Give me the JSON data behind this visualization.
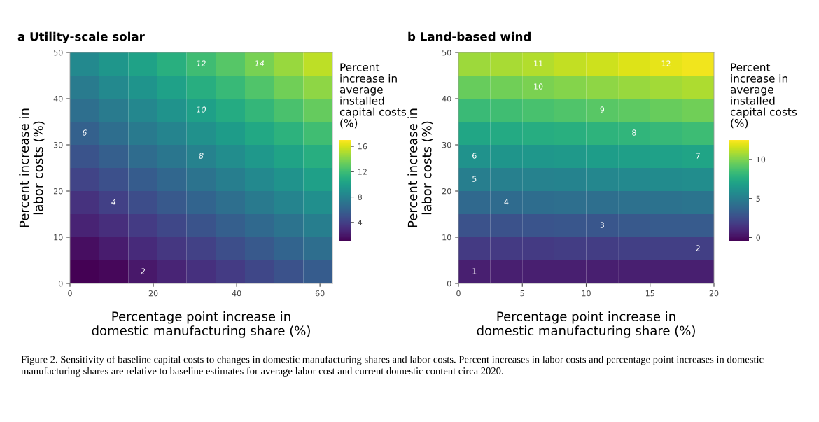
{
  "chart_data": [
    {
      "type": "heatmap",
      "title": "a Utility-scale solar",
      "xlabel": "Percentage point increase in\ndomestic manufacturing share (%)",
      "ylabel": "Percent increase in\nlabor costs (%)",
      "clabel": "Percent\nincrease in\naverage\ninstalled\ncapital costs\n(%)",
      "x": [
        3.5,
        10.5,
        17.5,
        24.5,
        31.5,
        38.5,
        45.5,
        52.5,
        59.5
      ],
      "y": [
        47.5,
        42.5,
        37.5,
        32.5,
        27.5,
        22.5,
        17.5,
        12.5,
        7.5,
        2.5
      ],
      "xlim": [
        0,
        63
      ],
      "ylim": [
        0,
        50
      ],
      "xticks": [
        0,
        20,
        40,
        60
      ],
      "yticks": [
        0,
        10,
        20,
        30,
        40,
        50
      ],
      "clim": [
        1,
        17
      ],
      "cticks": [
        4,
        8,
        12,
        16
      ],
      "cells": [
        [
          8.5,
          9.4,
          10.2,
          11.1,
          12.0,
          12.8,
          13.7,
          14.5,
          15.4
        ],
        [
          7.6,
          8.5,
          9.3,
          10.1,
          11.0,
          11.8,
          12.6,
          13.5,
          14.3
        ],
        [
          6.8,
          7.6,
          8.4,
          9.2,
          10.0,
          10.8,
          11.6,
          12.4,
          13.2
        ],
        [
          5.9,
          6.7,
          7.5,
          8.2,
          9.0,
          9.8,
          10.6,
          11.3,
          12.1
        ],
        [
          5.1,
          5.8,
          6.6,
          7.3,
          8.0,
          8.8,
          9.5,
          10.3,
          11.0
        ],
        [
          4.2,
          4.9,
          5.6,
          6.3,
          7.1,
          7.8,
          8.5,
          9.2,
          10.0
        ],
        [
          3.3,
          4.0,
          4.7,
          5.4,
          6.1,
          6.8,
          7.5,
          8.2,
          8.9
        ],
        [
          2.5,
          3.1,
          3.8,
          4.4,
          5.1,
          5.8,
          6.4,
          7.1,
          7.8
        ],
        [
          1.6,
          2.2,
          2.9,
          3.5,
          4.1,
          4.8,
          5.4,
          6.1,
          6.7
        ],
        [
          0.7,
          1.3,
          2.0,
          2.6,
          3.2,
          3.8,
          4.4,
          5.0,
          5.6
        ]
      ],
      "annotations": [
        "2",
        "4",
        "6",
        "8",
        "10",
        "12",
        "14"
      ]
    },
    {
      "type": "heatmap",
      "title": "b Land-based wind",
      "xlabel": "Percentage point increase in\ndomestic manufacturing share (%)",
      "ylabel": "Percent increase in\nlabor costs (%)",
      "clabel": "Percent\nincrease in\naverage\ninstalled\ncapital costs\n(%)",
      "x": [
        1.25,
        3.75,
        6.25,
        8.75,
        11.25,
        13.75,
        16.25,
        18.75
      ],
      "y": [
        47.5,
        42.5,
        37.5,
        32.5,
        27.5,
        22.5,
        17.5,
        12.5,
        7.5,
        2.5
      ],
      "xlim": [
        0,
        20
      ],
      "ylim": [
        0,
        50
      ],
      "xticks": [
        0,
        5,
        10,
        15,
        20
      ],
      "yticks": [
        0,
        10,
        20,
        30,
        40,
        50
      ],
      "clim": [
        -0.5,
        12.5
      ],
      "cticks": [
        0,
        5,
        10
      ],
      "cells": [
        [
          10.6,
          10.8,
          11.0,
          11.3,
          11.5,
          11.8,
          12.0,
          12.2
        ],
        [
          9.5,
          9.7,
          9.9,
          10.1,
          10.3,
          10.5,
          10.7,
          10.9
        ],
        [
          8.3,
          8.5,
          8.7,
          8.9,
          9.1,
          9.3,
          9.5,
          9.7
        ],
        [
          7.2,
          7.4,
          7.6,
          7.7,
          7.9,
          8.0,
          8.2,
          8.4
        ],
        [
          6.1,
          6.3,
          6.4,
          6.5,
          6.7,
          6.8,
          6.9,
          7.1
        ],
        [
          5.0,
          5.1,
          5.2,
          5.3,
          5.5,
          5.6,
          5.7,
          5.8
        ],
        [
          3.9,
          4.0,
          4.1,
          4.2,
          4.2,
          4.3,
          4.4,
          4.5
        ],
        [
          2.8,
          2.8,
          2.9,
          3.0,
          3.0,
          3.1,
          3.2,
          3.2
        ],
        [
          1.7,
          1.7,
          1.7,
          1.8,
          1.8,
          1.9,
          1.9,
          1.9
        ],
        [
          0.6,
          0.6,
          0.6,
          0.6,
          0.6,
          0.6,
          0.6,
          0.6
        ]
      ],
      "annotations": [
        "1",
        "2",
        "3",
        "4",
        "5",
        "6",
        "7",
        "8",
        "9",
        "10",
        "11",
        "12",
        "Figure 2. Sensitivity of baseline capital costs to changes in domestic manufacturing shares and labor costs. Percent increases in labor costs and percentage point increases in domestic manufacturing shares are relative to baseline estimates for average labor cost and current domestic content circa 2020."
      ]
    }
  ]
}
